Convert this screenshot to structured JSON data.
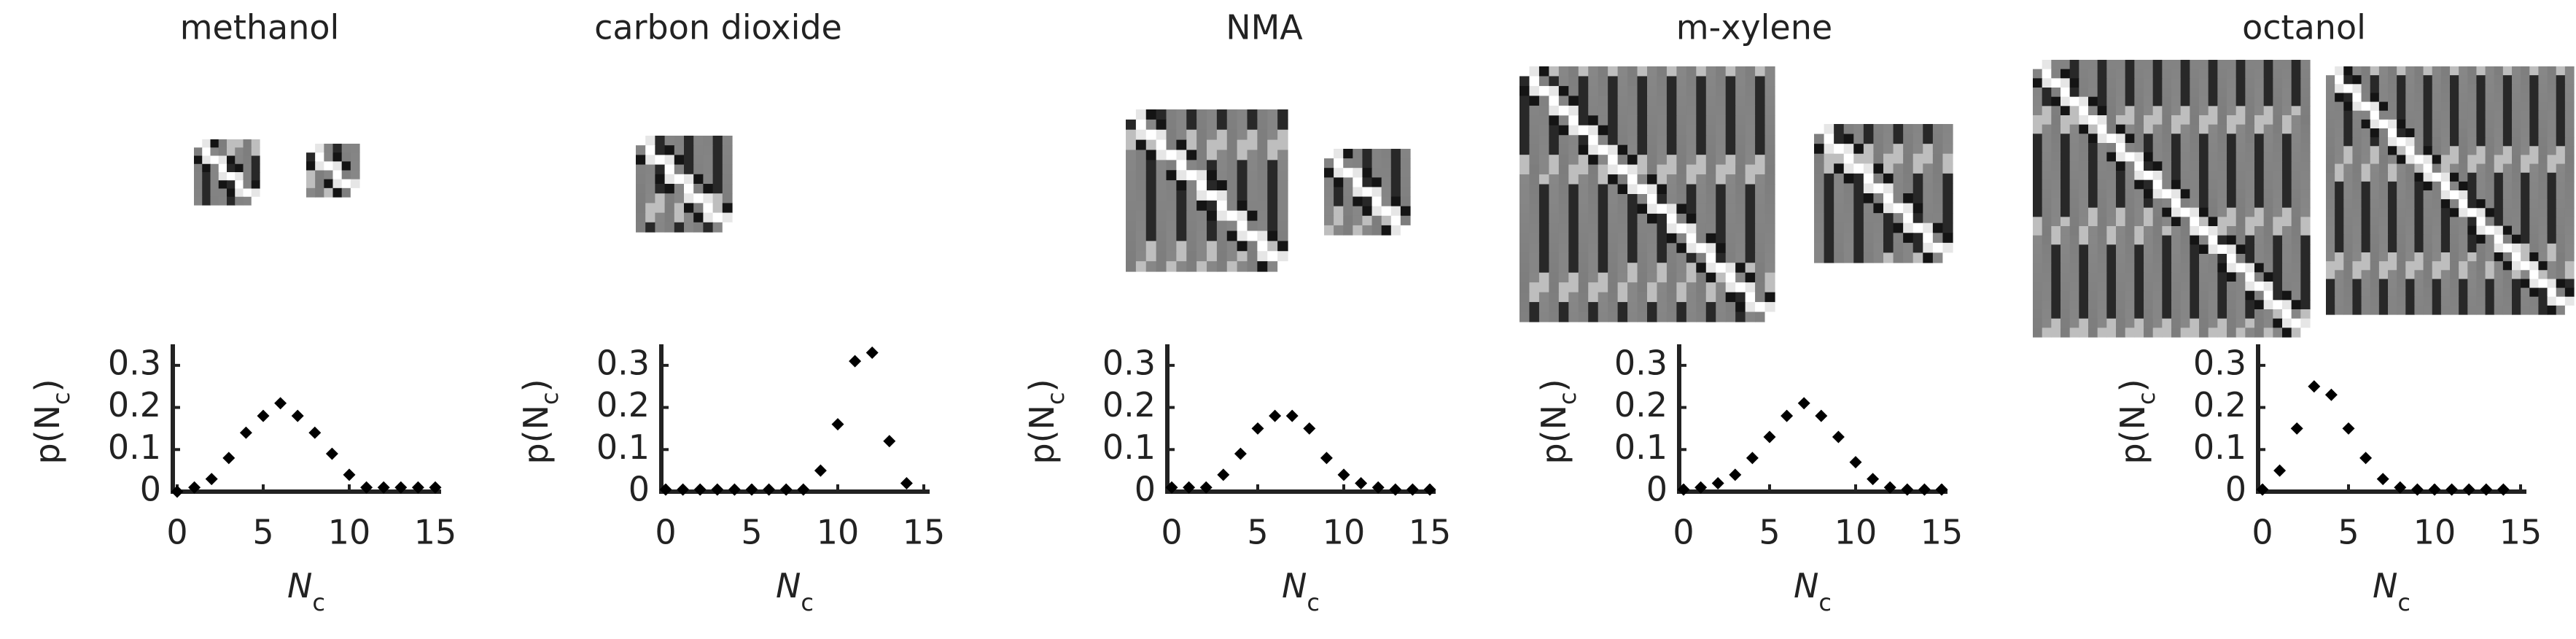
{
  "chart_data": [
    {
      "type": "scatter",
      "title": "methanol",
      "ylabel": {
        "main": "p(N",
        "sub": "c",
        "close": ")"
      },
      "xlabel": {
        "main": "N",
        "sub": "c"
      },
      "x": [
        0,
        1,
        2,
        3,
        4,
        5,
        6,
        7,
        8,
        9,
        10,
        11,
        12,
        13,
        14,
        15
      ],
      "values": [
        0.0,
        0.01,
        0.03,
        0.08,
        0.14,
        0.18,
        0.21,
        0.18,
        0.14,
        0.09,
        0.04,
        0.01,
        0.01,
        0.01,
        0.01,
        0.01
      ],
      "color": "#000000",
      "xlim": [
        0,
        15
      ],
      "ylim": [
        0,
        0.35
      ],
      "xticks": [
        0,
        5,
        10,
        15
      ],
      "yticks": [
        0,
        0.1,
        0.2,
        0.3
      ]
    },
    {
      "type": "scatter",
      "title": "carbon dioxide",
      "ylabel": {
        "main": "p(N",
        "sub": "c",
        "close": ")"
      },
      "xlabel": {
        "main": "N",
        "sub": "c"
      },
      "x": [
        0,
        1,
        2,
        3,
        4,
        5,
        6,
        7,
        8,
        9,
        10,
        11,
        12,
        13,
        14
      ],
      "values": [
        0.005,
        0.005,
        0.005,
        0.005,
        0.005,
        0.005,
        0.005,
        0.005,
        0.005,
        0.05,
        0.16,
        0.31,
        0.33,
        0.12,
        0.02
      ],
      "color": "#000000",
      "xlim": [
        0,
        15
      ],
      "ylim": [
        0,
        0.35
      ],
      "xticks": [
        0,
        5,
        10,
        15
      ],
      "yticks": [
        0,
        0.1,
        0.2,
        0.3
      ]
    },
    {
      "type": "scatter",
      "title": "NMA",
      "ylabel": {
        "main": "p(N",
        "sub": "c",
        "close": ")"
      },
      "xlabel": {
        "main": "N",
        "sub": "c"
      },
      "x": [
        0,
        1,
        2,
        3,
        4,
        5,
        6,
        7,
        8,
        9,
        10,
        11,
        12,
        13,
        14,
        15
      ],
      "values": [
        0.01,
        0.01,
        0.01,
        0.04,
        0.09,
        0.15,
        0.18,
        0.18,
        0.15,
        0.08,
        0.04,
        0.02,
        0.01,
        0.005,
        0.005,
        0.005
      ],
      "color": "#000000",
      "xlim": [
        0,
        15
      ],
      "ylim": [
        0,
        0.35
      ],
      "xticks": [
        0,
        5,
        10,
        15
      ],
      "yticks": [
        0,
        0.1,
        0.2,
        0.3
      ]
    },
    {
      "type": "scatter",
      "title": "m-xylene",
      "ylabel": {
        "main": "p(N",
        "sub": "c",
        "close": ")"
      },
      "xlabel": {
        "main": "N",
        "sub": "c"
      },
      "x": [
        0,
        1,
        2,
        3,
        4,
        5,
        6,
        7,
        8,
        9,
        10,
        11,
        12,
        13,
        14,
        15
      ],
      "values": [
        0.005,
        0.01,
        0.02,
        0.04,
        0.08,
        0.13,
        0.18,
        0.21,
        0.18,
        0.13,
        0.07,
        0.03,
        0.01,
        0.005,
        0.005,
        0.005
      ],
      "color": "#000000",
      "xlim": [
        0,
        15
      ],
      "ylim": [
        0,
        0.35
      ],
      "xticks": [
        0,
        5,
        10,
        15
      ],
      "yticks": [
        0,
        0.1,
        0.2,
        0.3
      ]
    },
    {
      "type": "scatter",
      "title": "octanol",
      "ylabel": {
        "main": "p(N",
        "sub": "c",
        "close": ")"
      },
      "xlabel": {
        "main": "N",
        "sub": "c"
      },
      "x": [
        0,
        1,
        2,
        3,
        4,
        5,
        6,
        7,
        8,
        9,
        10,
        11,
        12,
        13,
        14
      ],
      "values": [
        0.005,
        0.05,
        0.15,
        0.25,
        0.23,
        0.15,
        0.08,
        0.03,
        0.01,
        0.005,
        0.005,
        0.005,
        0.005,
        0.005,
        0.005
      ],
      "color": "#000000",
      "xlim": [
        0,
        15
      ],
      "ylim": [
        0,
        0.35
      ],
      "xticks": [
        0,
        5,
        10,
        15
      ],
      "yticks": [
        0,
        0.1,
        0.2,
        0.3
      ]
    }
  ]
}
